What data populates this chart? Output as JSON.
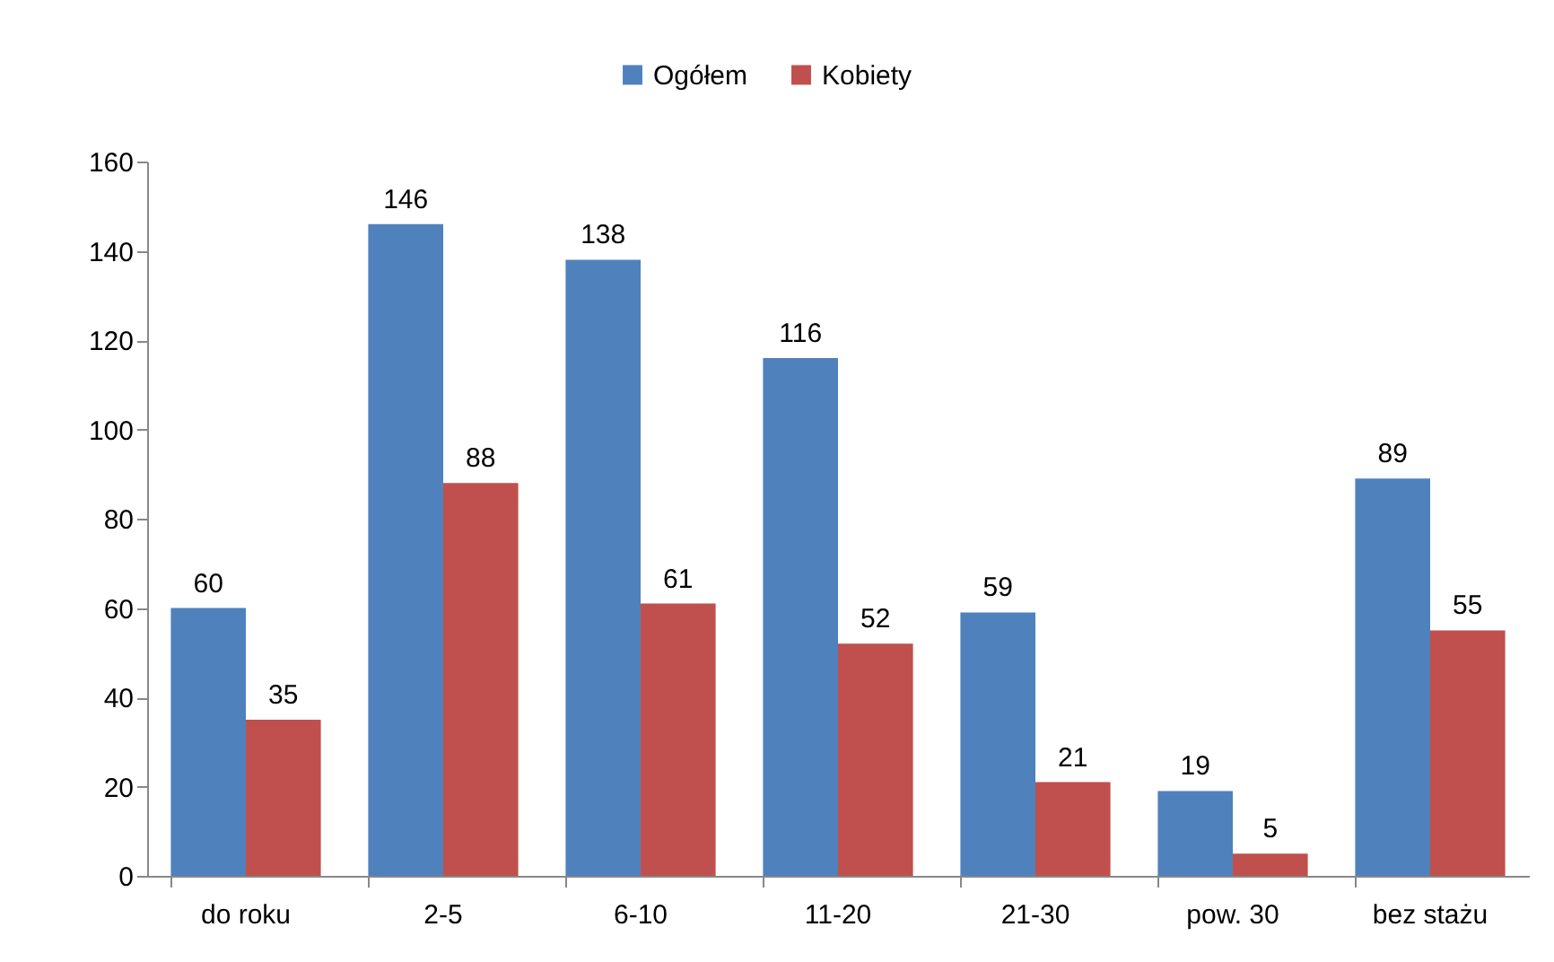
{
  "chart_data": {
    "type": "bar",
    "categories": [
      "do roku",
      "2-5",
      "6-10",
      "11-20",
      "21-30",
      "pow. 30",
      "bez stażu"
    ],
    "series": [
      {
        "name": "Ogółem",
        "color": "#4f81bd",
        "values": [
          60,
          146,
          138,
          116,
          59,
          19,
          89
        ]
      },
      {
        "name": "Kobiety",
        "color": "#c0504d",
        "values": [
          35,
          88,
          61,
          52,
          21,
          5,
          55
        ]
      }
    ],
    "ylim": [
      0,
      160
    ],
    "yticks": [
      0,
      20,
      40,
      60,
      80,
      100,
      120,
      140,
      160
    ],
    "data_labels": true,
    "legend": "top",
    "grid": false
  }
}
